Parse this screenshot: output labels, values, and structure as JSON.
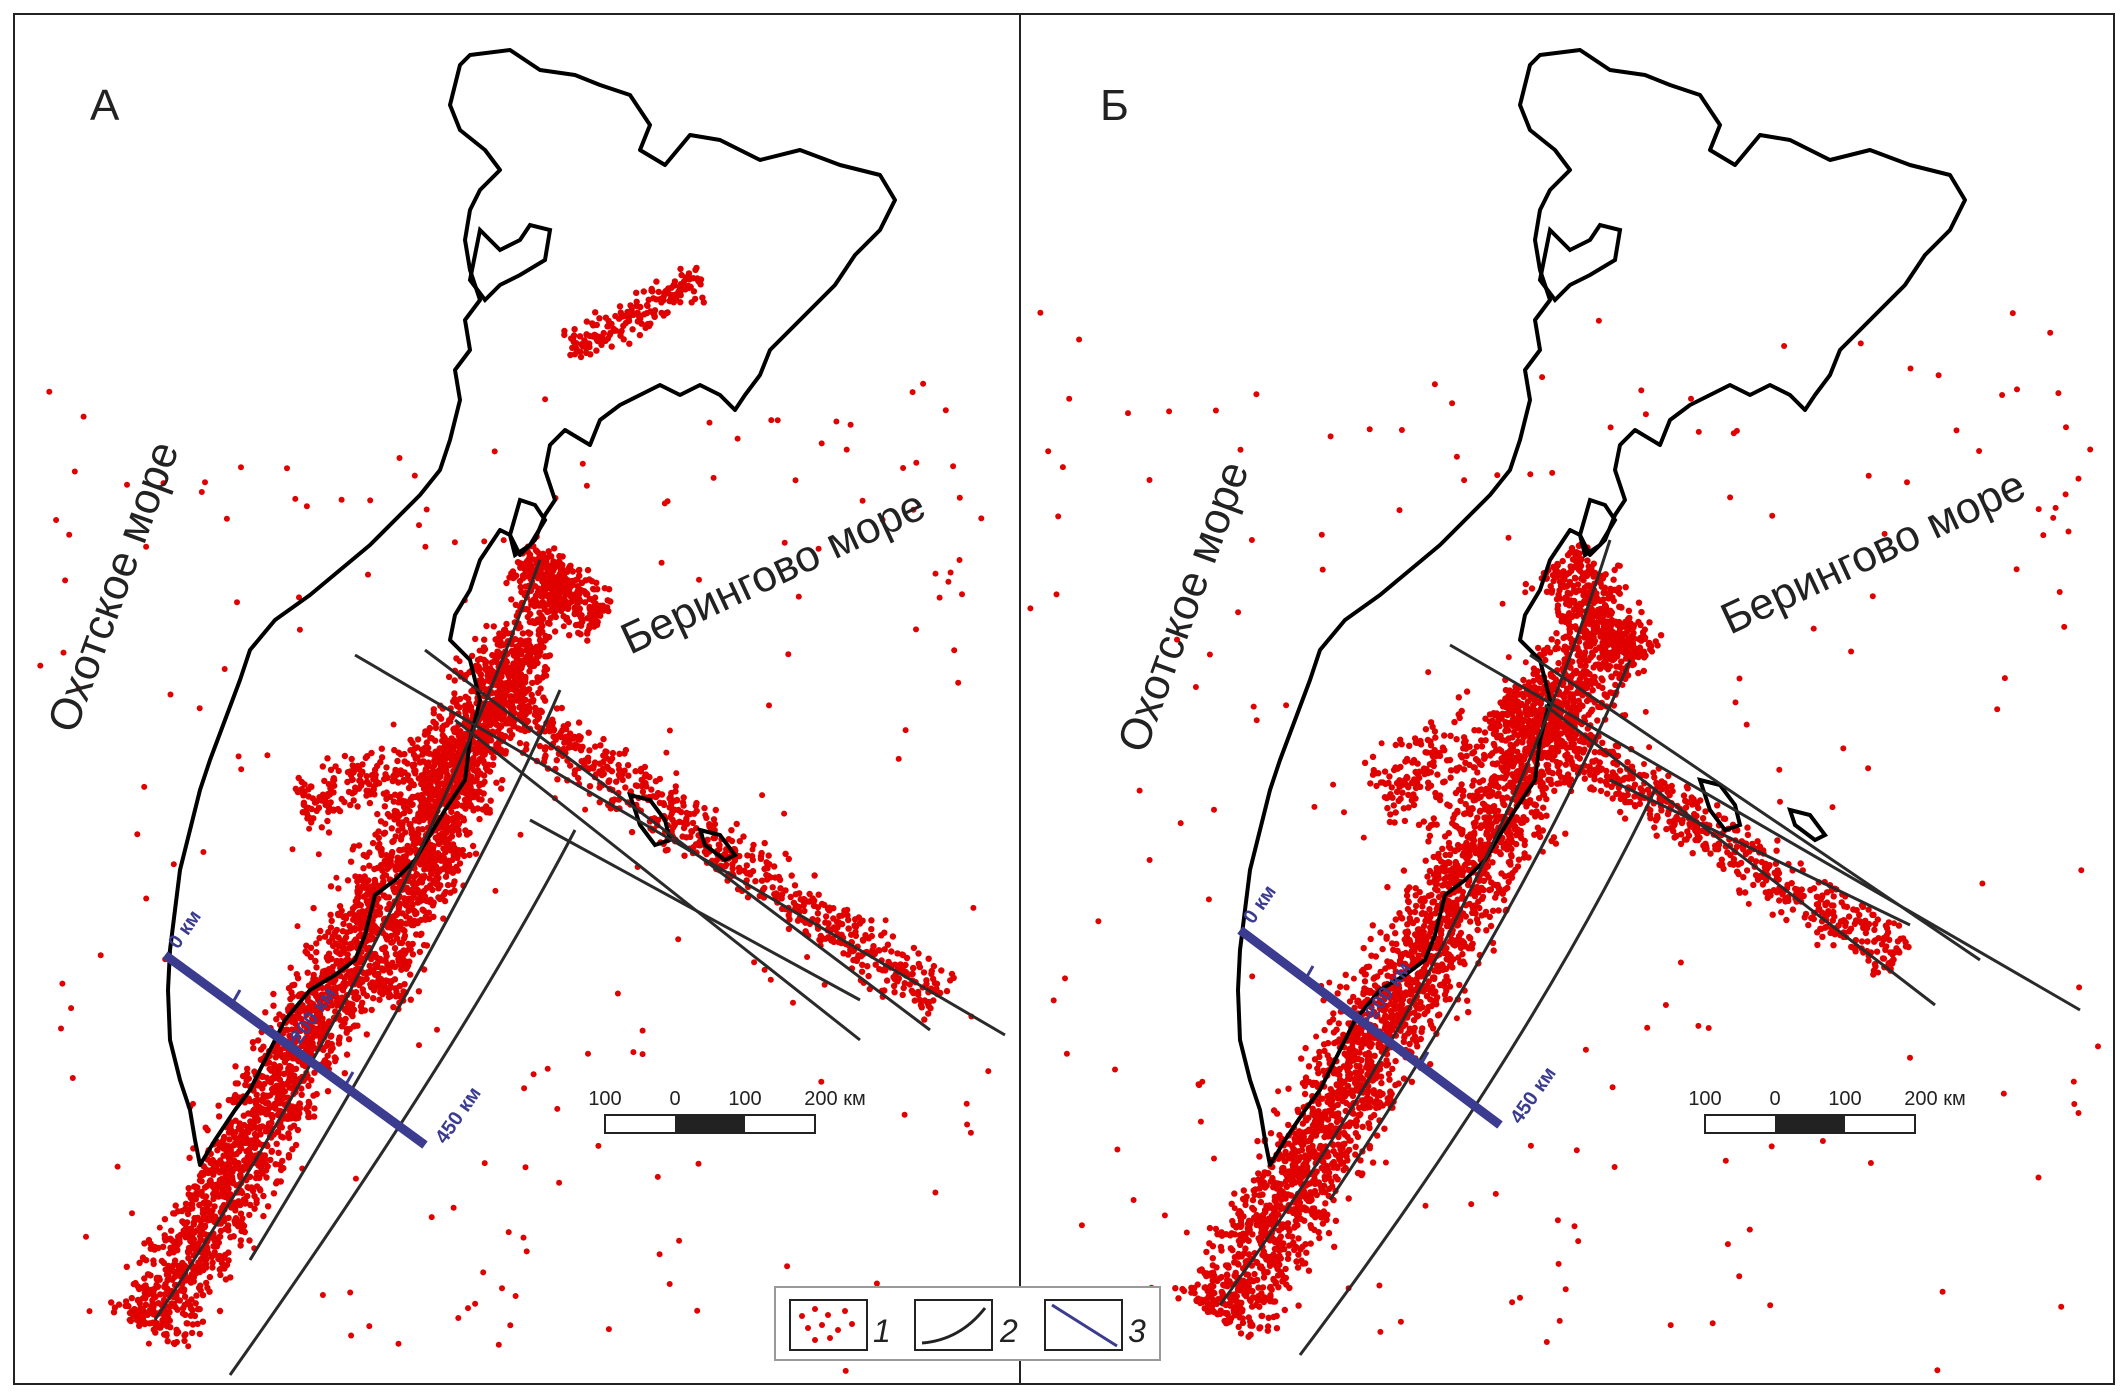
{
  "panels": [
    {
      "id": "A",
      "label": "А",
      "sea_left": "Охотское море",
      "sea_right": "Берингово море",
      "profile": {
        "start_label": "0 км",
        "mid_label": "200 км",
        "end_label": "450 км"
      }
    },
    {
      "id": "B",
      "label": "Б",
      "sea_left": "Охотское море",
      "sea_right": "Берингово море",
      "profile": {
        "start_label": "0 км",
        "mid_label": "200 км",
        "end_label": "450 км"
      }
    }
  ],
  "scalebar": {
    "labels": [
      "100",
      "0",
      "100",
      "200 км"
    ]
  },
  "legend": {
    "items": [
      {
        "key": "1",
        "symbol": "earthquake-epicenters"
      },
      {
        "key": "2",
        "symbol": "zone-boundary-line"
      },
      {
        "key": "3",
        "symbol": "profile-line"
      }
    ]
  },
  "colors": {
    "epicenter": "#e00000",
    "coast": "#000000",
    "zone_line": "#2a2a2a",
    "profile": "#3b3b8f"
  }
}
